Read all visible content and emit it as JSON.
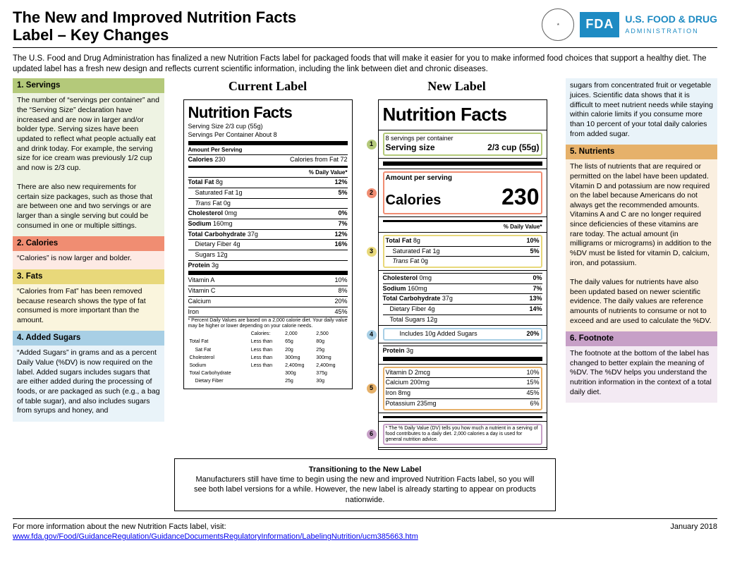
{
  "header": {
    "title": "The New and Improved Nutrition Facts\nLabel – Key Changes",
    "fda_badge": "FDA",
    "fda_name": "U.S. FOOD & DRUG",
    "fda_sub": "ADMINISTRATION"
  },
  "intro": "The U.S. Food and Drug Administration has finalized a new Nutrition Facts label for packaged foods that will make it easier for you to make informed food choices that support a healthy diet. The updated label has a fresh new design and reflects current scientific information, including the link between diet and chronic diseases.",
  "left_sections": [
    {
      "num": "1.",
      "title": "Servings",
      "body": "The number of “servings per container” and the “Serving Size” declaration have increased and are now in larger and/or bolder type. Serving sizes have been updated to reflect what people actually eat and drink today. For example, the serving size for ice cream was previously 1/2 cup and now is 2/3 cup.\n\nThere are also new requirements for certain size packages, such as those that are between one and two servings or are larger than a single serving but could be consumed in one or multiple sittings."
    },
    {
      "num": "2.",
      "title": "Calories",
      "body": "“Calories” is now larger and bolder."
    },
    {
      "num": "3.",
      "title": "Fats",
      "body": "“Calories from Fat” has been removed because research shows the type of fat consumed is more important than the amount."
    },
    {
      "num": "4.",
      "title": "Added Sugars",
      "body": "“Added Sugars” in grams and as a percent Daily Value (%DV) is now required on the label. Added sugars includes sugars that are either added during the processing of foods, or are packaged as such (e.g., a bag of table sugar), and also includes sugars from syrups and honey, and"
    }
  ],
  "right_top": "sugars from concentrated fruit or vegetable juices. Scientific data shows that it is difficult to meet nutrient needs while staying within calorie limits if you consume more than 10 percent of your total daily calories from added sugar.",
  "right_sections": [
    {
      "num": "5.",
      "title": "Nutrients",
      "body": "The lists of nutrients that are required or permitted on the label have been updated. Vitamin D and potassium are now required on the label because Americans do not always get the recommended amounts. Vitamins A and C are no longer required since deficiencies of these vitamins are rare today. The actual amount (in milligrams or micrograms) in addition to the %DV must be listed for vitamin D, calcium, iron, and potassium.\n\nThe daily values for nutrients have also been updated based on newer scientific evidence. The daily values are reference amounts of nutrients to consume or not to exceed and are used to calculate the %DV."
    },
    {
      "num": "6.",
      "title": "Footnote",
      "body": "The footnote at the bottom of the label has changed to better explain the meaning of %DV. The %DV helps you understand the nutrition information in the context of a total daily diet."
    }
  ],
  "current_label_title": "Current Label",
  "new_label_title": "New Label",
  "current": {
    "nf": "Nutrition Facts",
    "serving_size": "Serving Size 2/3 cup (55g)",
    "servings_per": "Servings Per Container About 8",
    "aps": "Amount Per Serving",
    "calories_label": "Calories",
    "calories": "230",
    "cal_fat": "Calories from Fat 72",
    "dv_head": "% Daily Value*",
    "rows": [
      {
        "name": "Total Fat",
        "amt": "8g",
        "dv": "12%",
        "bold": true
      },
      {
        "name": "Saturated Fat",
        "amt": "1g",
        "dv": "5%",
        "indent": true
      },
      {
        "name": "Trans Fat",
        "amt": "0g",
        "italic": true,
        "indent": true
      },
      {
        "name": "Cholesterol",
        "amt": "0mg",
        "dv": "0%",
        "bold": true
      },
      {
        "name": "Sodium",
        "amt": "160mg",
        "dv": "7%",
        "bold": true
      },
      {
        "name": "Total Carbohydrate",
        "amt": "37g",
        "dv": "12%",
        "bold": true
      },
      {
        "name": "Dietary Fiber",
        "amt": "4g",
        "dv": "16%",
        "indent": true
      },
      {
        "name": "Sugars",
        "amt": "12g",
        "indent": true
      },
      {
        "name": "Protein",
        "amt": "3g",
        "bold": true
      }
    ],
    "vits": [
      {
        "name": "Vitamin A",
        "dv": "10%"
      },
      {
        "name": "Vitamin C",
        "dv": "8%"
      },
      {
        "name": "Calcium",
        "dv": "20%"
      },
      {
        "name": "Iron",
        "dv": "45%"
      }
    ],
    "footnote": "* Percent Daily Values are based on a 2,000 calorie diet. Your daily value may be higher or lower depending on your calorie needs.",
    "foot_table": {
      "head": [
        "",
        "Calories:",
        "2,000",
        "2,500"
      ],
      "rows": [
        [
          "Total Fat",
          "Less than",
          "65g",
          "80g"
        ],
        [
          "Sat Fat",
          "Less than",
          "20g",
          "25g"
        ],
        [
          "Cholesterol",
          "Less than",
          "300mg",
          "300mg"
        ],
        [
          "Sodium",
          "Less than",
          "2,400mg",
          "2,400mg"
        ],
        [
          "Total Carbohydrate",
          "",
          "300g",
          "375g"
        ],
        [
          "Dietary Fiber",
          "",
          "25g",
          "30g"
        ]
      ]
    }
  },
  "new": {
    "nf": "Nutrition Facts",
    "servings_per": "8 servings per container",
    "serving_size_label": "Serving size",
    "serving_size": "2/3 cup (55g)",
    "aps": "Amount per serving",
    "calories_label": "Calories",
    "calories": "230",
    "dv_head": "% Daily Value*",
    "fat_rows": [
      {
        "name": "Total Fat",
        "amt": "8g",
        "dv": "10%",
        "bold": true
      },
      {
        "name": "Saturated Fat",
        "amt": "1g",
        "dv": "5%",
        "indent": true
      },
      {
        "name": "Trans Fat",
        "amt": "0g",
        "italic": true,
        "indent": true
      }
    ],
    "mid_rows": [
      {
        "name": "Cholesterol",
        "amt": "0mg",
        "dv": "0%",
        "bold": true
      },
      {
        "name": "Sodium",
        "amt": "160mg",
        "dv": "7%",
        "bold": true
      },
      {
        "name": "Total Carbohydrate",
        "amt": "37g",
        "dv": "13%",
        "bold": true
      },
      {
        "name": "Dietary Fiber",
        "amt": "4g",
        "dv": "14%",
        "indent": true
      },
      {
        "name": "Total Sugars",
        "amt": "12g",
        "indent": true
      }
    ],
    "added_sugars": {
      "text": "Includes 10g Added Sugars",
      "dv": "20%"
    },
    "protein": {
      "name": "Protein",
      "amt": "3g",
      "bold": true
    },
    "vits": [
      {
        "name": "Vitamin D 2mcg",
        "dv": "10%"
      },
      {
        "name": "Calcium 200mg",
        "dv": "15%"
      },
      {
        "name": "Iron 8mg",
        "dv": "45%"
      },
      {
        "name": "Potassium 235mg",
        "dv": "6%"
      }
    ],
    "footnote": "* The % Daily Value (DV) tells you how much a nutrient in a serving of food contributes to a daily diet. 2,000 calories a day is used for general nutrition advice."
  },
  "transition": {
    "title": "Transitioning to the New Label",
    "body": "Manufacturers still have time to begin using the new and improved Nutrition Facts label, so you will see both label versions for a while. However, the new label is already starting to appear on products nationwide."
  },
  "footer": {
    "text": "For more information about the new Nutrition Facts label, visit:",
    "url": "www.fda.gov/Food/GuidanceRegulation/GuidanceDocumentsRegulatoryInformation/LabelingNutrition/ucm385663.htm",
    "date": "January 2018"
  },
  "colors": {
    "g1": "#b4c97a",
    "g2": "#f08d72",
    "g3": "#e8d87a",
    "g4": "#a8cfe5",
    "g5": "#e6b16a",
    "g6": "#c7a0c7",
    "fda_blue": "#1e8bc3"
  }
}
